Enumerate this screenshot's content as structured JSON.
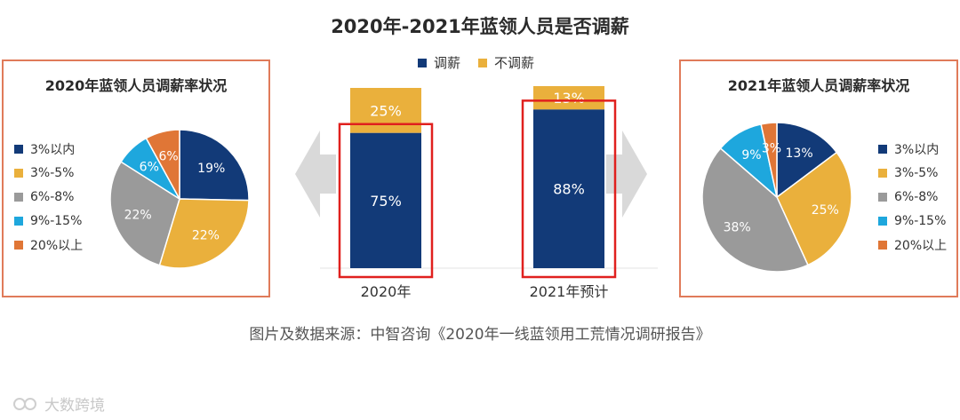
{
  "title": "2020年-2021年蓝领人员是否调薪",
  "colors": {
    "navy": "#123a78",
    "orange": "#eab03c",
    "gray": "#9a9a9a",
    "cyan": "#1ea7dd",
    "rust": "#e07636",
    "red_frame": "#e0201e",
    "arrow": "#d9d9d9"
  },
  "center_legend": [
    {
      "label": "调薪",
      "color": "#123a78"
    },
    {
      "label": "不调薪",
      "color": "#eab03c"
    }
  ],
  "left_panel": {
    "title": "2020年蓝领人员调薪率状况",
    "legend": [
      "3%以内",
      "3%-5%",
      "6%-8%",
      "9%-15%",
      "20%以上"
    ]
  },
  "right_panel": {
    "title": "2021年蓝领人员调薪率状况",
    "legend": [
      "3%以内",
      "3%-5%",
      "6%-8%",
      "9%-15%",
      "20%以上"
    ]
  },
  "source": "图片及数据来源：中智咨询《2020年一线蓝领用工荒情况调研报告》",
  "watermark": "大数跨境",
  "chart_data": [
    {
      "type": "bar",
      "title": "2020年-2021年蓝领人员是否调薪",
      "stacked": true,
      "categories": [
        "2020年",
        "2021年预计"
      ],
      "series": [
        {
          "name": "调薪",
          "values": [
            75,
            88
          ],
          "labels": [
            "75%",
            "88%"
          ]
        },
        {
          "name": "不调薪",
          "values": [
            25,
            13
          ],
          "labels": [
            "25%",
            "13%"
          ]
        }
      ],
      "legend_position": "top"
    },
    {
      "type": "pie",
      "title": "2020年蓝领人员调薪率状况",
      "labels": [
        "3%以内",
        "3%-5%",
        "6%-8%",
        "9%-15%",
        "20%以上"
      ],
      "values": [
        19,
        22,
        22,
        6,
        6
      ],
      "value_labels": [
        "19%",
        "22%",
        "22%",
        "6%",
        "6%"
      ],
      "colors": [
        "#123a78",
        "#eab03c",
        "#9a9a9a",
        "#1ea7dd",
        "#e07636"
      ],
      "legend_position": "left"
    },
    {
      "type": "pie",
      "title": "2021年蓝领人员调薪率状况",
      "labels": [
        "3%以内",
        "3%-5%",
        "6%-8%",
        "9%-15%",
        "20%以上"
      ],
      "values": [
        13,
        25,
        38,
        9,
        3
      ],
      "value_labels": [
        "13%",
        "25%",
        "38%",
        "9%",
        "3%"
      ],
      "colors": [
        "#123a78",
        "#eab03c",
        "#9a9a9a",
        "#1ea7dd",
        "#e07636"
      ],
      "legend_position": "right"
    }
  ]
}
